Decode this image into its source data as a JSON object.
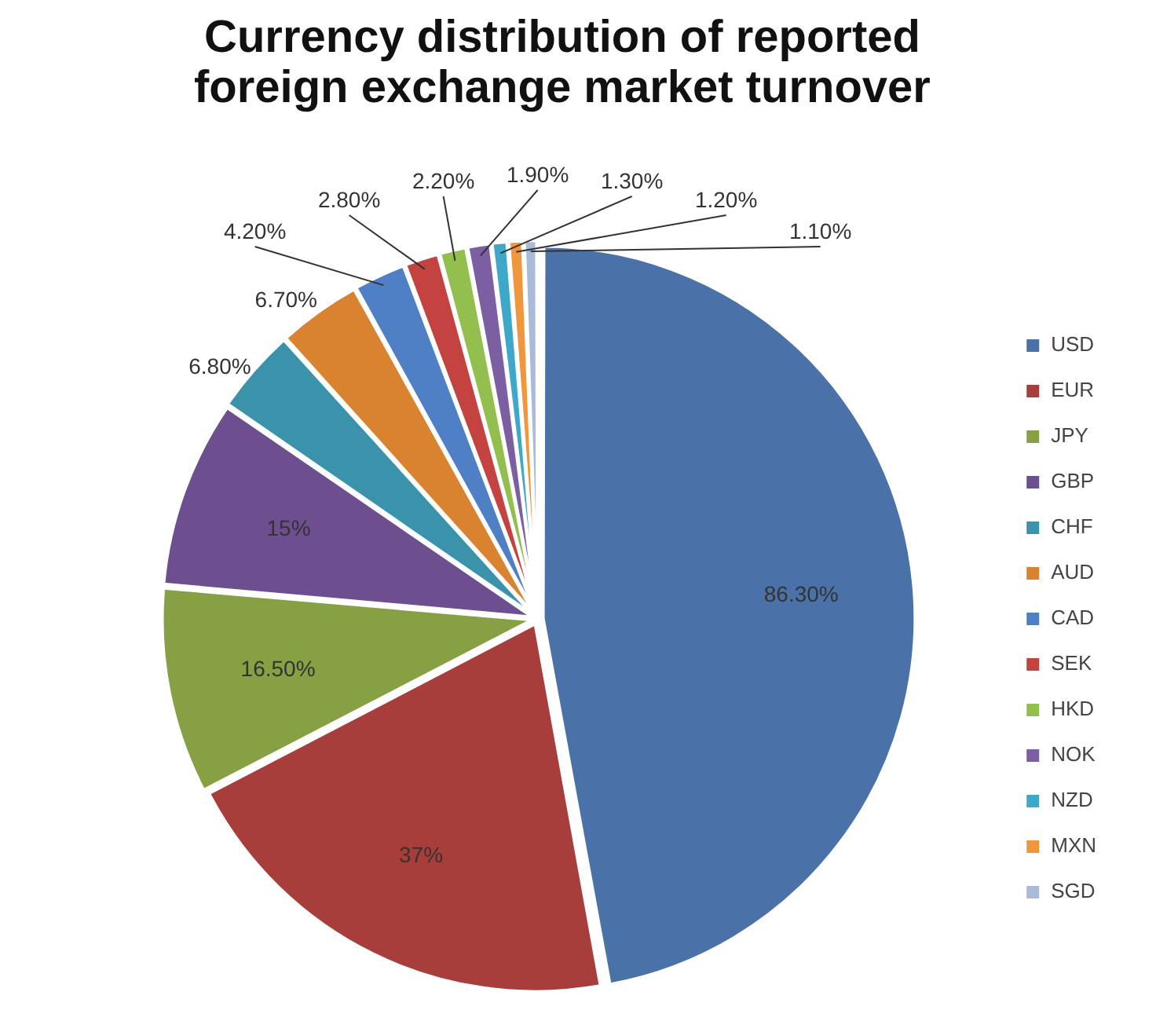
{
  "chart_data": {
    "type": "pie",
    "title": "Currency distribution of reported foreign exchange market turnover",
    "categories": [
      "USD",
      "EUR",
      "JPY",
      "GBP",
      "CHF",
      "AUD",
      "CAD",
      "SEK",
      "HKD",
      "NOK",
      "NZD",
      "MXN",
      "SGD"
    ],
    "values": [
      86.3,
      37,
      16.5,
      15,
      6.8,
      6.7,
      4.2,
      2.8,
      2.2,
      1.9,
      1.3,
      1.2,
      1.1
    ],
    "value_labels": [
      "86.30%",
      "37%",
      "16.50%",
      "15%",
      "6.80%",
      "6.70%",
      "4.20%",
      "2.80%",
      "2.20%",
      "1.90%",
      "1.30%",
      "1.20%",
      "1.10%"
    ],
    "colors": [
      "#4a72a8",
      "#a83e3b",
      "#86a043",
      "#6d4f8f",
      "#3a93aa",
      "#d9822f",
      "#4f7fc4",
      "#c4423f",
      "#93bf4f",
      "#7c5ea3",
      "#3fa8c8",
      "#f0963c",
      "#a9bbd9"
    ],
    "legend": "right"
  }
}
